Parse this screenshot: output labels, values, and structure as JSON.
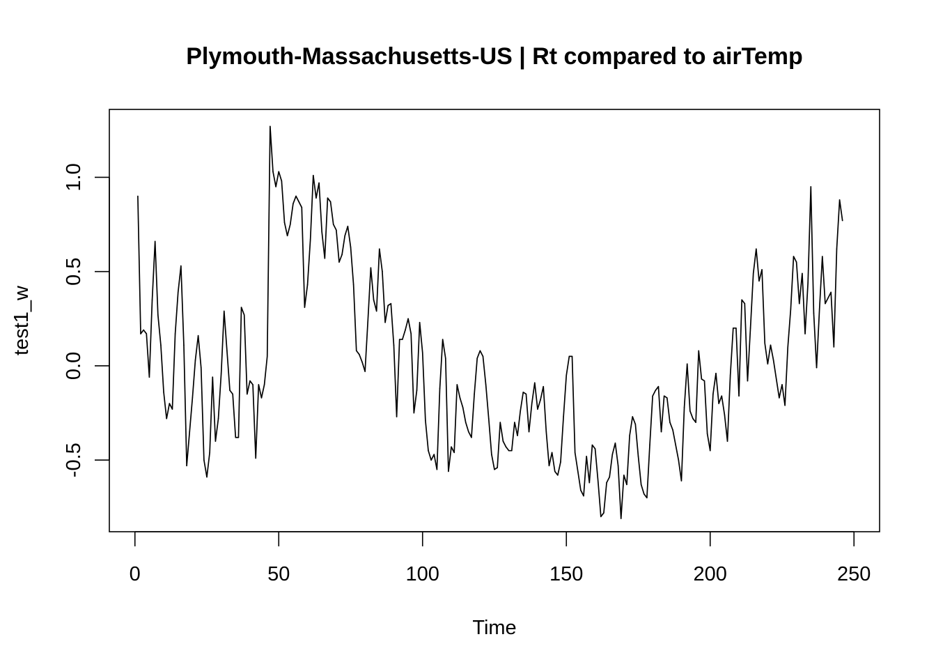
{
  "chart_data": {
    "type": "line",
    "title": "Plymouth-Massachusetts-US | Rt compared to airTemp",
    "xlabel": "Time",
    "ylabel": "test1_w",
    "xlim": [
      -8.9,
      258.9
    ],
    "ylim": [
      -0.88,
      1.36
    ],
    "x_ticks": [
      0,
      50,
      100,
      150,
      200,
      250
    ],
    "x_tick_labels": [
      "0",
      "50",
      "100",
      "150",
      "200",
      "250"
    ],
    "y_ticks": [
      -0.5,
      0.0,
      0.5,
      1.0
    ],
    "y_tick_labels": [
      "-0.5",
      "0.0",
      "0.5",
      "1.0"
    ],
    "grid": false,
    "legend": "none",
    "line_color": "#000000",
    "series": [
      {
        "x_start": 1,
        "x_step": 1,
        "values": [
          0.9,
          0.17,
          0.19,
          0.17,
          -0.06,
          0.35,
          0.66,
          0.27,
          0.11,
          -0.14,
          -0.28,
          -0.2,
          -0.23,
          0.17,
          0.39,
          0.53,
          0.11,
          -0.53,
          -0.35,
          -0.17,
          0.03,
          0.16,
          -0.01,
          -0.5,
          -0.59,
          -0.46,
          -0.06,
          -0.4,
          -0.28,
          -0.04,
          0.29,
          0.08,
          -0.13,
          -0.15,
          -0.38,
          -0.38,
          0.31,
          0.27,
          -0.15,
          -0.08,
          -0.1,
          -0.49,
          -0.1,
          -0.17,
          -0.1,
          0.05,
          1.27,
          1.03,
          0.95,
          1.03,
          0.98,
          0.76,
          0.69,
          0.75,
          0.86,
          0.9,
          0.87,
          0.84,
          0.31,
          0.43,
          0.67,
          1.01,
          0.89,
          0.97,
          0.71,
          0.57,
          0.89,
          0.87,
          0.75,
          0.72,
          0.55,
          0.59,
          0.69,
          0.74,
          0.63,
          0.43,
          0.08,
          0.06,
          0.02,
          -0.03,
          0.24,
          0.52,
          0.35,
          0.29,
          0.62,
          0.5,
          0.23,
          0.32,
          0.33,
          0.11,
          -0.27,
          0.14,
          0.14,
          0.19,
          0.25,
          0.17,
          -0.25,
          -0.13,
          0.23,
          0.07,
          -0.29,
          -0.45,
          -0.5,
          -0.47,
          -0.55,
          -0.12,
          0.14,
          0.04,
          -0.56,
          -0.43,
          -0.46,
          -0.1,
          -0.17,
          -0.22,
          -0.3,
          -0.35,
          -0.38,
          -0.15,
          0.04,
          0.08,
          0.05,
          -0.1,
          -0.28,
          -0.47,
          -0.55,
          -0.54,
          -0.3,
          -0.4,
          -0.43,
          -0.45,
          -0.45,
          -0.3,
          -0.37,
          -0.24,
          -0.14,
          -0.15,
          -0.35,
          -0.2,
          -0.09,
          -0.23,
          -0.18,
          -0.11,
          -0.35,
          -0.53,
          -0.46,
          -0.56,
          -0.58,
          -0.51,
          -0.27,
          -0.05,
          0.05,
          0.05,
          -0.46,
          -0.56,
          -0.66,
          -0.69,
          -0.48,
          -0.62,
          -0.42,
          -0.44,
          -0.61,
          -0.8,
          -0.78,
          -0.62,
          -0.59,
          -0.47,
          -0.41,
          -0.53,
          -0.81,
          -0.58,
          -0.63,
          -0.37,
          -0.27,
          -0.31,
          -0.48,
          -0.63,
          -0.68,
          -0.7,
          -0.42,
          -0.16,
          -0.13,
          -0.11,
          -0.35,
          -0.16,
          -0.17,
          -0.3,
          -0.34,
          -0.42,
          -0.5,
          -0.61,
          -0.22,
          0.01,
          -0.24,
          -0.28,
          -0.3,
          0.08,
          -0.07,
          -0.08,
          -0.36,
          -0.45,
          -0.15,
          -0.04,
          -0.2,
          -0.16,
          -0.26,
          -0.4,
          -0.05,
          0.2,
          0.2,
          -0.16,
          0.35,
          0.33,
          -0.08,
          0.2,
          0.49,
          0.62,
          0.45,
          0.51,
          0.12,
          0.01,
          0.11,
          0.03,
          -0.07,
          -0.17,
          -0.1,
          -0.21,
          0.1,
          0.3,
          0.58,
          0.55,
          0.33,
          0.49,
          0.17,
          0.44,
          0.95,
          0.28,
          -0.01,
          0.3,
          0.58,
          0.33,
          0.36,
          0.39,
          0.1,
          0.62,
          0.88,
          0.77
        ]
      }
    ]
  }
}
